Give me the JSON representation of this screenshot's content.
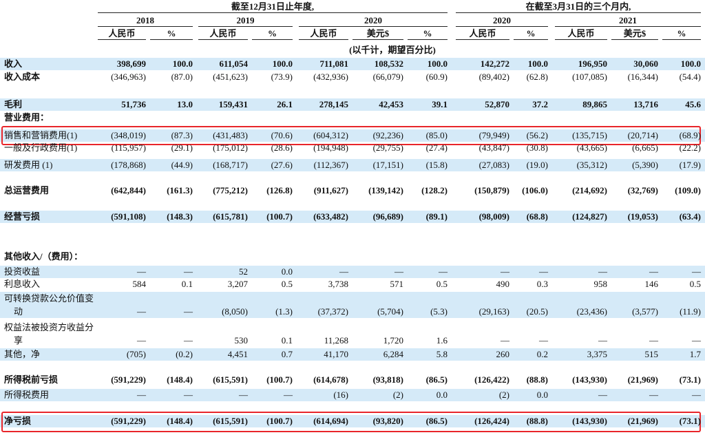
{
  "header": {
    "groups": [
      "截至12月31日止年度,",
      "在截至3月31日的三个月内,"
    ],
    "years": [
      "2018",
      "2019",
      "2020",
      "2020",
      "2021"
    ],
    "currencies": [
      "人民币",
      "%",
      "人民币",
      "%",
      "人民币",
      "美元$",
      "%",
      "人民币",
      "%",
      "人民币",
      "美元$",
      "%"
    ],
    "unit_note": "(以千计，期望百分比)"
  },
  "table": {
    "rows": [
      {
        "label": "收入",
        "cells": [
          "398,699",
          "100.0",
          "611,054",
          "100.0",
          "711,081",
          "108,532",
          "100.0",
          "142,272",
          "100.0",
          "196,950",
          "30,060",
          "100.0"
        ]
      },
      {
        "label": "收入成本",
        "cells": [
          "(346,963)",
          "(87.0)",
          "(451,623)",
          "(73.9)",
          "(432,936)",
          "(66,079)",
          "(60.9)",
          "(89,402)",
          "(62.8)",
          "(107,085)",
          "(16,344)",
          "(54.4)"
        ]
      },
      {
        "label": "毛利",
        "cells": [
          "51,736",
          "13.0",
          "159,431",
          "26.1",
          "278,145",
          "42,453",
          "39.1",
          "52,870",
          "37.2",
          "89,865",
          "13,716",
          "45.6"
        ]
      },
      {
        "label": "营业费用："
      },
      {
        "label": "销售和营销费用(1)",
        "cells": [
          "(348,019)",
          "(87.3)",
          "(431,483)",
          "(70.6)",
          "(604,312)",
          "(92,236)",
          "(85.0)",
          "(79,949)",
          "(56.2)",
          "(135,715)",
          "(20,714)",
          "(68.9)"
        ]
      },
      {
        "label": "一般及行政费用(1)",
        "cells": [
          "(115,957)",
          "(29.1)",
          "(175,012)",
          "(28.6)",
          "(194,948)",
          "(29,755)",
          "(27.4)",
          "(43,847)",
          "(30.8)",
          "(43,665)",
          "(6,665)",
          "(22.2)"
        ]
      },
      {
        "label": "研发费用 (1)",
        "cells": [
          "(178,868)",
          "(44.9)",
          "(168,717)",
          "(27.6)",
          "(112,367)",
          "(17,151)",
          "(15.8)",
          "(27,083)",
          "(19.0)",
          "(35,312)",
          "(5,390)",
          "(17.9)"
        ]
      },
      {
        "label": "总运营费用",
        "cells": [
          "(642,844)",
          "(161.3)",
          "(775,212)",
          "(126.8)",
          "(911,627)",
          "(139,142)",
          "(128.2)",
          "(150,879)",
          "(106.0)",
          "(214,692)",
          "(32,769)",
          "(109.0)"
        ]
      },
      {
        "label": "经营亏损",
        "cells": [
          "(591,108)",
          "(148.3)",
          "(615,781)",
          "(100.7)",
          "(633,482)",
          "(96,689)",
          "(89.1)",
          "(98,009)",
          "(68.8)",
          "(124,827)",
          "(19,053)",
          "(63.4)"
        ]
      },
      {
        "label": "其他收入/（费用）："
      },
      {
        "label": "投资收益",
        "cells": [
          "—",
          "—",
          "52",
          "0.0",
          "—",
          "—",
          "—",
          "—",
          "—",
          "—",
          "—",
          "—"
        ]
      },
      {
        "label": "利息收入",
        "cells": [
          "584",
          "0.1",
          "3,207",
          "0.5",
          "3,738",
          "571",
          "0.5",
          "490",
          "0.3",
          "958",
          "146",
          "0.5"
        ]
      },
      {
        "label": "可转换贷款公允价值变动",
        "cells": [
          "—",
          "—",
          "(8,050)",
          "(1.3)",
          "(37,372)",
          "(5,704)",
          "(5.3)",
          "(29,163)",
          "(20.5)",
          "(23,436)",
          "(3,577)",
          "(11.9)"
        ]
      },
      {
        "label": "权益法被投资方收益分享",
        "cells": [
          "—",
          "—",
          "530",
          "0.1",
          "11,268",
          "1,720",
          "1.6",
          "—",
          "—",
          "—",
          "—",
          "—"
        ]
      },
      {
        "label": "其他，净",
        "cells": [
          "(705)",
          "(0.2)",
          "4,451",
          "0.7",
          "41,170",
          "6,284",
          "5.8",
          "260",
          "0.2",
          "3,375",
          "515",
          "1.7"
        ]
      },
      {
        "label": "所得税前亏损",
        "cells": [
          "(591,229)",
          "(148.4)",
          "(615,591)",
          "(100.7)",
          "(614,678)",
          "(93,818)",
          "(86.5)",
          "(126,422)",
          "(88.8)",
          "(143,930)",
          "(21,969)",
          "(73.1)"
        ]
      },
      {
        "label": "所得税费用",
        "cells": [
          "—",
          "—",
          "—",
          "—",
          "(16)",
          "(2)",
          "0.0",
          "(2)",
          "0.0",
          "—",
          "—",
          "—"
        ]
      },
      {
        "label": "净亏损",
        "cells": [
          "(591,229)",
          "(148.4)",
          "(615,591)",
          "(100.7)",
          "(614,694)",
          "(93,820)",
          "(86.5)",
          "(126,424)",
          "(88.8)",
          "(143,930)",
          "(21,969)",
          "(73.1)"
        ]
      }
    ]
  }
}
